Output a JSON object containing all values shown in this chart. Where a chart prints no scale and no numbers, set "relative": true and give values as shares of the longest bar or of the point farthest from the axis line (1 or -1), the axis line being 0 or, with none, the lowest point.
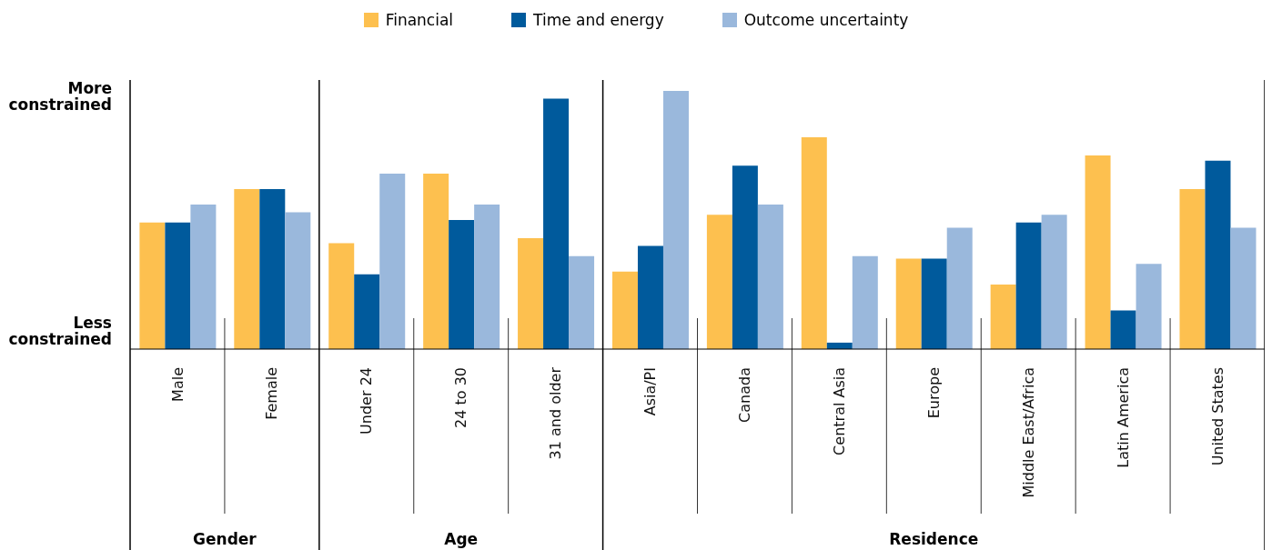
{
  "chart_data": {
    "type": "bar",
    "relative": true,
    "legend": "top",
    "grid": false,
    "categories": [
      "Male",
      "Female",
      "Under 24",
      "24 to 30",
      "31 and older",
      "Asia/PI",
      "Canada",
      "Central Asia",
      "Europe",
      "Middle East/Africa",
      "Latin America",
      "United States"
    ],
    "series": [
      {
        "name": "Financial",
        "color": "#fdc04f",
        "values": [
          0.49,
          0.62,
          0.41,
          0.68,
          0.43,
          0.3,
          0.52,
          0.82,
          0.35,
          0.25,
          0.75,
          0.62
        ]
      },
      {
        "name": "Time and energy",
        "color": "#005a9c",
        "values": [
          0.49,
          0.62,
          0.29,
          0.5,
          0.97,
          0.4,
          0.71,
          0.025,
          0.35,
          0.49,
          0.15,
          0.73
        ]
      },
      {
        "name": "Outcome uncertainty",
        "color": "#9ab8dc",
        "values": [
          0.56,
          0.53,
          0.68,
          0.56,
          0.36,
          1,
          0.56,
          0.36,
          0.47,
          0.52,
          0.33,
          0.47
        ]
      }
    ],
    "annotations": [
      "More constrained",
      "Less constrained",
      "Gender",
      "Age",
      "Residence"
    ]
  }
}
